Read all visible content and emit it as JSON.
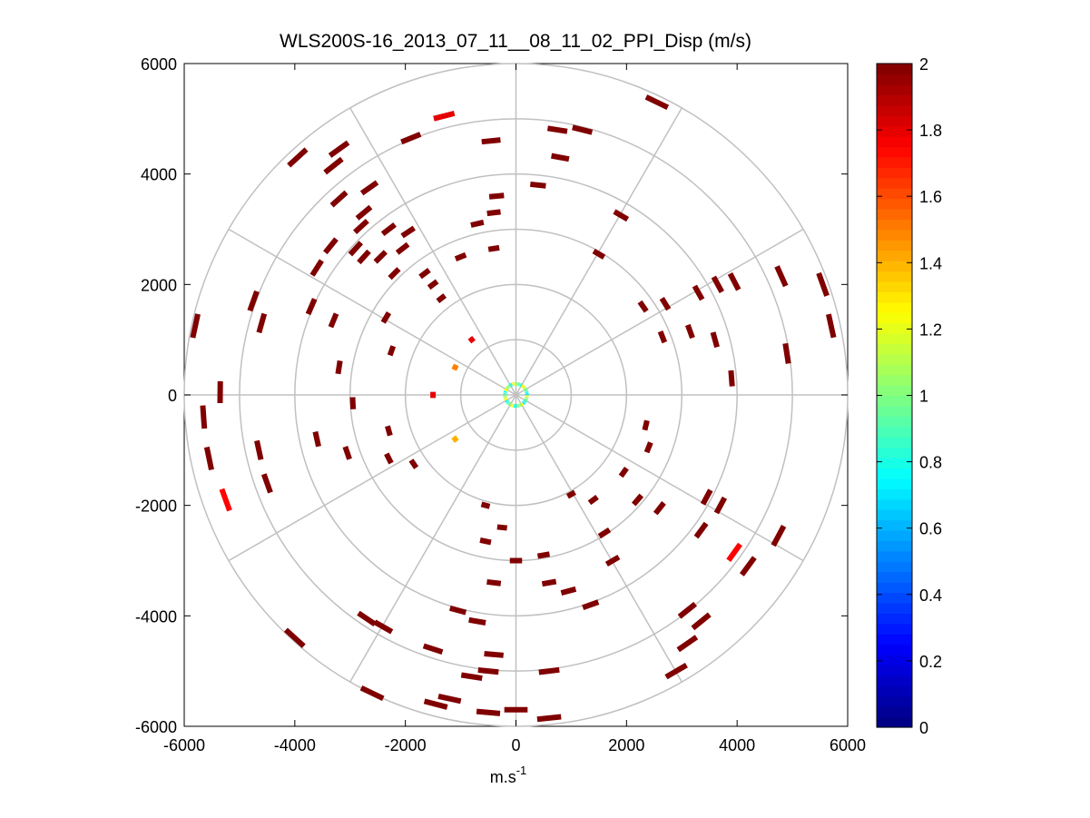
{
  "chart_data": {
    "type": "polar_ppi_scatter",
    "title": "WLS200S-16_2013_07_11__08_11_02_PPI_Disp (m/s)",
    "xlabel": "m.s",
    "xlabel_superscript": "-1",
    "ylabel": "",
    "xlim": [
      -6000,
      6000
    ],
    "ylim": [
      -6000,
      6000
    ],
    "x_ticks": [
      -6000,
      -4000,
      -2000,
      0,
      2000,
      4000,
      6000
    ],
    "y_ticks": [
      6000,
      4000,
      2000,
      0,
      -2000,
      -4000,
      -6000
    ],
    "x_tick_labels": [
      "-6000",
      "-4000",
      "-2000",
      "0",
      "2000",
      "4000",
      "6000"
    ],
    "y_tick_labels": [
      "6000",
      "4000",
      "2000",
      "0",
      "-2000",
      "-4000",
      "-6000"
    ],
    "range_rings_m": [
      1000,
      2000,
      3000,
      4000,
      5000,
      6000
    ],
    "spoke_angles_deg": [
      0,
      30,
      60,
      90,
      120,
      150,
      180,
      210,
      240,
      270,
      300,
      330
    ],
    "colorbar": {
      "min": 0,
      "max": 2,
      "ticks": [
        0,
        0.2,
        0.4,
        0.6,
        0.8,
        1,
        1.2,
        1.4,
        1.6,
        1.8,
        2
      ],
      "tick_labels": [
        "0",
        "0.2",
        "0.4",
        "0.6",
        "0.8",
        "1",
        "1.2",
        "1.4",
        "1.6",
        "1.8",
        "2"
      ],
      "colormap": "jet"
    },
    "points": [
      {
        "x": -1300,
        "y": 5050,
        "v": 1.8
      },
      {
        "x": -450,
        "y": 4600,
        "v": 2
      },
      {
        "x": 750,
        "y": 4800,
        "v": 2
      },
      {
        "x": 2550,
        "y": 5300,
        "v": 2
      },
      {
        "x": 1200,
        "y": 4800,
        "v": 2
      },
      {
        "x": 800,
        "y": 4300,
        "v": 2
      },
      {
        "x": -1900,
        "y": 4650,
        "v": 2
      },
      {
        "x": -3200,
        "y": 4450,
        "v": 2
      },
      {
        "x": -3950,
        "y": 4300,
        "v": 2
      },
      {
        "x": -3300,
        "y": 4150,
        "v": 2
      },
      {
        "x": -3200,
        "y": 3550,
        "v": 2
      },
      {
        "x": -2650,
        "y": 3750,
        "v": 2
      },
      {
        "x": -2750,
        "y": 3300,
        "v": 2
      },
      {
        "x": -2800,
        "y": 3050,
        "v": 2
      },
      {
        "x": -2300,
        "y": 3000,
        "v": 2
      },
      {
        "x": -2900,
        "y": 2650,
        "v": 2
      },
      {
        "x": -2750,
        "y": 2500,
        "v": 2
      },
      {
        "x": -2450,
        "y": 2500,
        "v": 2
      },
      {
        "x": -3600,
        "y": 2300,
        "v": 2
      },
      {
        "x": -3350,
        "y": 2700,
        "v": 2
      },
      {
        "x": -2050,
        "y": 2650,
        "v": 2
      },
      {
        "x": -2200,
        "y": 2200,
        "v": 2
      },
      {
        "x": -1650,
        "y": 2200,
        "v": 2
      },
      {
        "x": -1500,
        "y": 2000,
        "v": 2
      },
      {
        "x": -1950,
        "y": 2950,
        "v": 2
      },
      {
        "x": -1350,
        "y": 1750,
        "v": 2
      },
      {
        "x": -1000,
        "y": 2500,
        "v": 2
      },
      {
        "x": -700,
        "y": 3100,
        "v": 2
      },
      {
        "x": -400,
        "y": 3300,
        "v": 2
      },
      {
        "x": -350,
        "y": 3600,
        "v": 2
      },
      {
        "x": -400,
        "y": 2650,
        "v": 2
      },
      {
        "x": 1900,
        "y": 3250,
        "v": 2
      },
      {
        "x": 1500,
        "y": 2550,
        "v": 2
      },
      {
        "x": 400,
        "y": 3800,
        "v": 2
      },
      {
        "x": 2300,
        "y": 1600,
        "v": 2
      },
      {
        "x": 2700,
        "y": 1650,
        "v": 2
      },
      {
        "x": 3300,
        "y": 1850,
        "v": 2
      },
      {
        "x": 3650,
        "y": 2000,
        "v": 2
      },
      {
        "x": 3950,
        "y": 2050,
        "v": 2
      },
      {
        "x": 4800,
        "y": 2150,
        "v": 2
      },
      {
        "x": 5550,
        "y": 2000,
        "v": 2
      },
      {
        "x": 5700,
        "y": 1250,
        "v": 2
      },
      {
        "x": 3150,
        "y": 1150,
        "v": 2
      },
      {
        "x": 2650,
        "y": 1050,
        "v": 2
      },
      {
        "x": 3600,
        "y": 1000,
        "v": 2
      },
      {
        "x": 3900,
        "y": 300,
        "v": 2
      },
      {
        "x": 4900,
        "y": 750,
        "v": 2
      },
      {
        "x": -4750,
        "y": 1700,
        "v": 2
      },
      {
        "x": -4600,
        "y": 1300,
        "v": 2
      },
      {
        "x": -5800,
        "y": 1250,
        "v": 2
      },
      {
        "x": -3700,
        "y": 1600,
        "v": 2
      },
      {
        "x": -3300,
        "y": 1350,
        "v": 2
      },
      {
        "x": -3200,
        "y": 500,
        "v": 2
      },
      {
        "x": -2250,
        "y": 800,
        "v": 2
      },
      {
        "x": -2350,
        "y": 1400,
        "v": 2
      },
      {
        "x": -5350,
        "y": 50,
        "v": 2
      },
      {
        "x": -5650,
        "y": -400,
        "v": 2
      },
      {
        "x": -5550,
        "y": -1150,
        "v": 2
      },
      {
        "x": -5250,
        "y": -1900,
        "v": 1.75
      },
      {
        "x": -4650,
        "y": -1000,
        "v": 2
      },
      {
        "x": -4500,
        "y": -1600,
        "v": 2
      },
      {
        "x": -3600,
        "y": -800,
        "v": 2
      },
      {
        "x": -3050,
        "y": -1050,
        "v": 2
      },
      {
        "x": -2300,
        "y": -1150,
        "v": 2
      },
      {
        "x": -2300,
        "y": -650,
        "v": 2
      },
      {
        "x": -2950,
        "y": -150,
        "v": 2
      },
      {
        "x": -1850,
        "y": -1250,
        "v": 2
      },
      {
        "x": 2350,
        "y": -550,
        "v": 2
      },
      {
        "x": 2400,
        "y": -950,
        "v": 2
      },
      {
        "x": 1950,
        "y": -1400,
        "v": 2
      },
      {
        "x": 2200,
        "y": -1900,
        "v": 2
      },
      {
        "x": 2600,
        "y": -2050,
        "v": 2
      },
      {
        "x": 3450,
        "y": -1850,
        "v": 2
      },
      {
        "x": 3700,
        "y": -2000,
        "v": 2
      },
      {
        "x": 3350,
        "y": -2450,
        "v": 2
      },
      {
        "x": 4750,
        "y": -2550,
        "v": 2
      },
      {
        "x": 3950,
        "y": -2850,
        "v": 1.75
      },
      {
        "x": 4200,
        "y": -3100,
        "v": 2
      },
      {
        "x": 3350,
        "y": -4100,
        "v": 2
      },
      {
        "x": 3100,
        "y": -3900,
        "v": 2
      },
      {
        "x": 3100,
        "y": -4500,
        "v": 2
      },
      {
        "x": 2900,
        "y": -5000,
        "v": 2
      },
      {
        "x": 1750,
        "y": -3000,
        "v": 2
      },
      {
        "x": 1350,
        "y": -3800,
        "v": 2
      },
      {
        "x": 600,
        "y": -5000,
        "v": 2
      },
      {
        "x": 600,
        "y": -5850,
        "v": 2
      },
      {
        "x": 0,
        "y": -5700,
        "v": 2
      },
      {
        "x": -500,
        "y": -5750,
        "v": 2
      },
      {
        "x": -1200,
        "y": -5500,
        "v": 2
      },
      {
        "x": -1450,
        "y": -5600,
        "v": 2
      },
      {
        "x": -2600,
        "y": -5400,
        "v": 2
      },
      {
        "x": -4000,
        "y": -4400,
        "v": 2
      },
      {
        "x": -2700,
        "y": -4050,
        "v": 2
      },
      {
        "x": -2400,
        "y": -4200,
        "v": 2
      },
      {
        "x": -1050,
        "y": -3900,
        "v": 2
      },
      {
        "x": -700,
        "y": -4100,
        "v": 2
      },
      {
        "x": -400,
        "y": -4700,
        "v": 2
      },
      {
        "x": -500,
        "y": -5000,
        "v": 2
      },
      {
        "x": -1500,
        "y": -4600,
        "v": 2
      },
      {
        "x": -800,
        "y": -5100,
        "v": 2
      },
      {
        "x": -400,
        "y": -3400,
        "v": 2
      },
      {
        "x": -550,
        "y": -2650,
        "v": 2
      },
      {
        "x": -250,
        "y": -2400,
        "v": 2
      },
      {
        "x": -550,
        "y": -2000,
        "v": 2
      },
      {
        "x": 500,
        "y": -2900,
        "v": 2
      },
      {
        "x": 600,
        "y": -3400,
        "v": 2
      },
      {
        "x": 950,
        "y": -3550,
        "v": 2
      },
      {
        "x": 1000,
        "y": -1800,
        "v": 2
      },
      {
        "x": 1400,
        "y": -1900,
        "v": 2
      },
      {
        "x": 1600,
        "y": -2500,
        "v": 2
      },
      {
        "x": 0,
        "y": -3000,
        "v": 2
      },
      {
        "x": -800,
        "y": 1000,
        "v": 1.8
      },
      {
        "x": -1100,
        "y": 500,
        "v": 1.5
      },
      {
        "x": -1100,
        "y": -800,
        "v": 1.4
      },
      {
        "x": -1500,
        "y": 0,
        "v": 1.8
      }
    ],
    "near_radar_ring": {
      "radius_m": 200,
      "v_range": [
        0.7,
        1.3
      ]
    }
  }
}
